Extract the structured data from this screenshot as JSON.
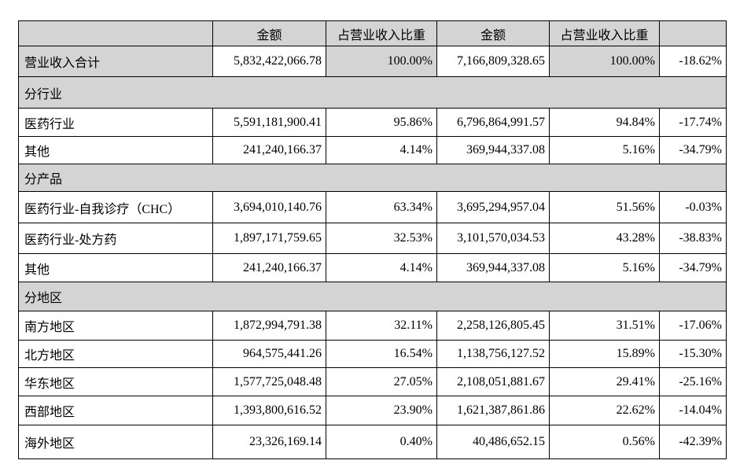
{
  "colors": {
    "shaded_bg": "#d4d4d4",
    "border": "#000000",
    "text": "#000000"
  },
  "table": {
    "headers": [
      "",
      "金额",
      "占营业收入比重",
      "金额",
      "占营业收入比重",
      ""
    ],
    "rows": [
      {
        "type": "total",
        "label": "营业收入合计",
        "cells": [
          "5,832,422,066.78",
          "100.00%",
          "7,166,809,328.65",
          "100.00%",
          "-18.62%"
        ]
      },
      {
        "type": "section",
        "label": "分行业",
        "cells": []
      },
      {
        "type": "data",
        "label": "医药行业",
        "cells": [
          "5,591,181,900.41",
          "95.86%",
          "6,796,864,991.57",
          "94.84%",
          "-17.74%"
        ]
      },
      {
        "type": "data",
        "label": "其他",
        "cells": [
          "241,240,166.37",
          "4.14%",
          "369,944,337.08",
          "5.16%",
          "-34.79%"
        ]
      },
      {
        "type": "section",
        "label": "分产品",
        "cells": []
      },
      {
        "type": "data",
        "label": "医药行业-自我诊疗（CHC）",
        "cells": [
          "3,694,010,140.76",
          "63.34%",
          "3,695,294,957.04",
          "51.56%",
          "-0.03%"
        ]
      },
      {
        "type": "data",
        "label": "医药行业-处方药",
        "cells": [
          "1,897,171,759.65",
          "32.53%",
          "3,101,570,034.53",
          "43.28%",
          "-38.83%"
        ]
      },
      {
        "type": "data",
        "label": "其他",
        "cells": [
          "241,240,166.37",
          "4.14%",
          "369,944,337.08",
          "5.16%",
          "-34.79%"
        ]
      },
      {
        "type": "section",
        "label": "分地区",
        "cells": []
      },
      {
        "type": "data",
        "label": "南方地区",
        "cells": [
          "1,872,994,791.38",
          "32.11%",
          "2,258,126,805.45",
          "31.51%",
          "-17.06%"
        ]
      },
      {
        "type": "data",
        "label": "北方地区",
        "cells": [
          "964,575,441.26",
          "16.54%",
          "1,138,756,127.52",
          "15.89%",
          "-15.30%"
        ]
      },
      {
        "type": "data",
        "label": "华东地区",
        "cells": [
          "1,577,725,048.48",
          "27.05%",
          "2,108,051,881.67",
          "29.41%",
          "-25.16%"
        ]
      },
      {
        "type": "data",
        "label": "西部地区",
        "cells": [
          "1,393,800,616.52",
          "23.90%",
          "1,621,387,861.86",
          "22.62%",
          "-14.04%"
        ]
      },
      {
        "type": "data",
        "label": "海外地区",
        "cells": [
          "23,326,169.14",
          "0.40%",
          "40,486,652.15",
          "0.56%",
          "-42.39%"
        ]
      }
    ]
  }
}
